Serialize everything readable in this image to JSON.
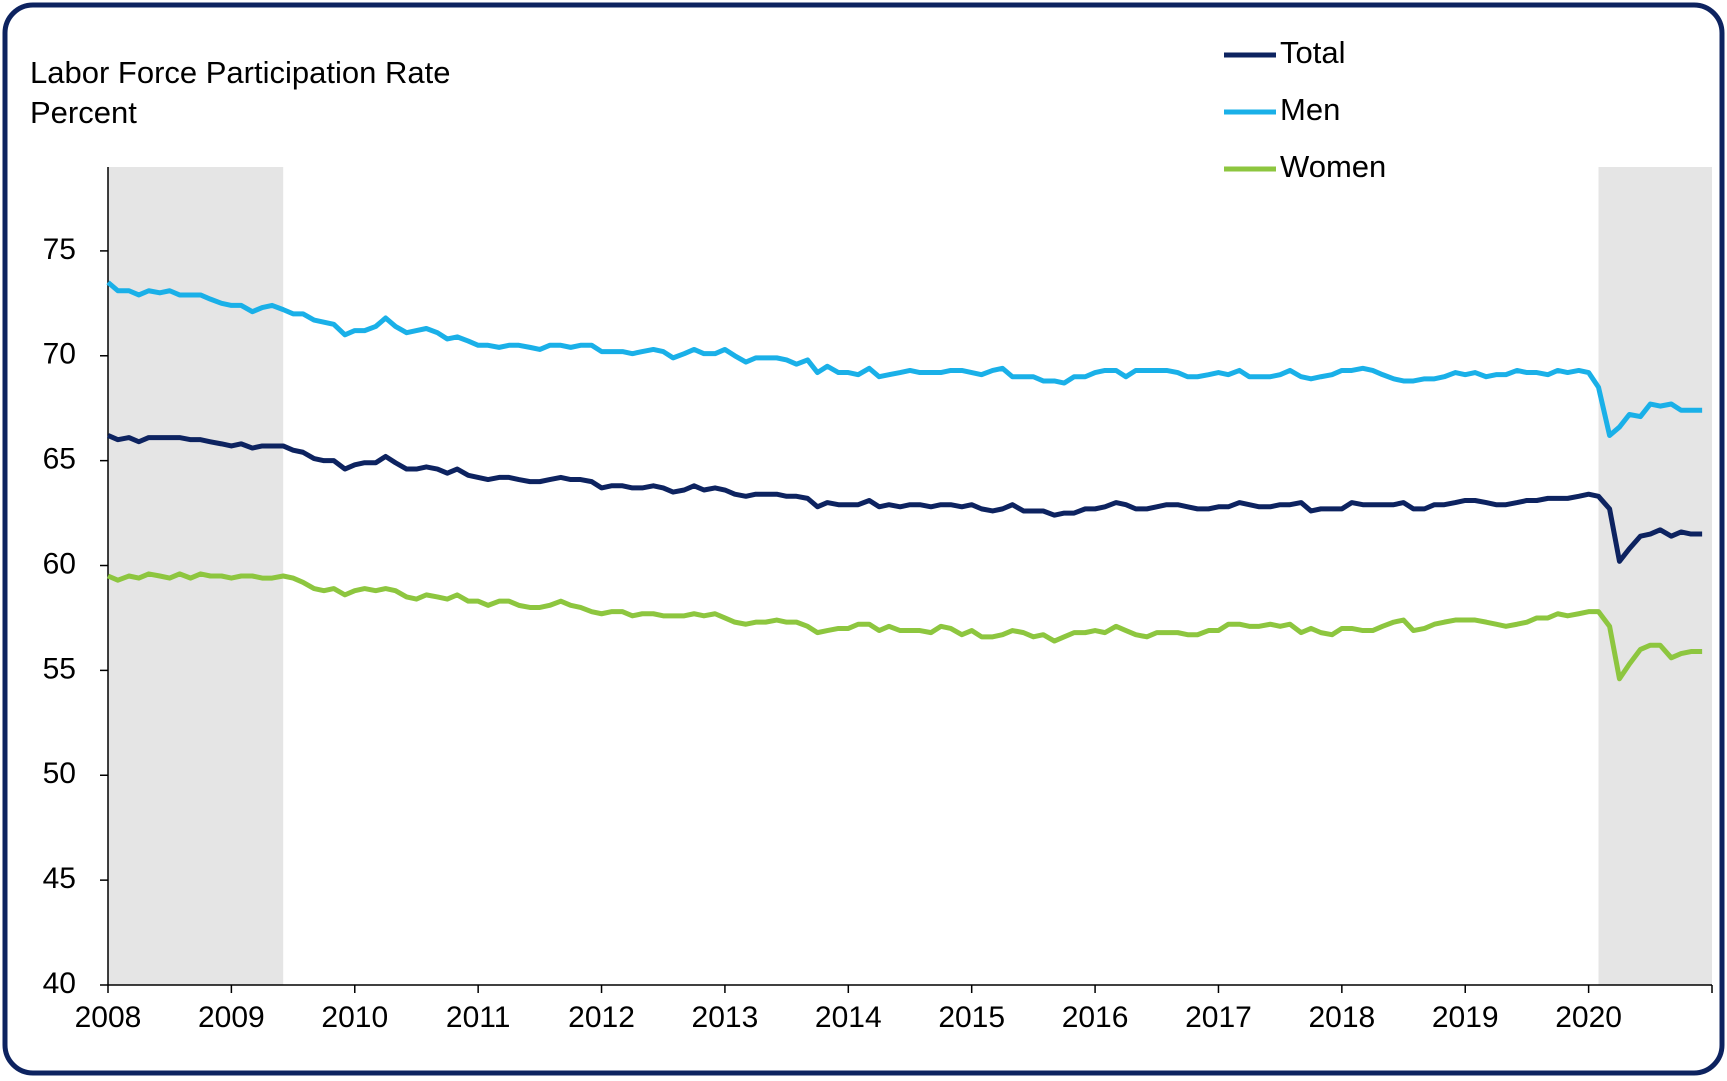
{
  "chart_data": {
    "type": "line",
    "title": "Labor Force Participation Rate",
    "ylabel": "Percent",
    "legend": "top-right",
    "grid": false,
    "shaded_ranges": [
      [
        2008,
        2009.42
      ],
      [
        2020.08,
        2021
      ]
    ],
    "shade_color": "#e5e5e5",
    "xlim": [
      2008,
      2021
    ],
    "xticks": [
      2008,
      2009,
      2010,
      2011,
      2012,
      2013,
      2014,
      2015,
      2016,
      2017,
      2018,
      2019,
      2020
    ],
    "ylim": [
      40,
      79
    ],
    "yticks": [
      40,
      45,
      50,
      55,
      60,
      65,
      70,
      75
    ],
    "x": [
      2008,
      2008.08,
      2008.17,
      2008.25,
      2008.33,
      2008.42,
      2008.5,
      2008.58,
      2008.67,
      2008.75,
      2008.83,
      2008.92,
      2009,
      2009.08,
      2009.17,
      2009.25,
      2009.33,
      2009.42,
      2009.5,
      2009.58,
      2009.67,
      2009.75,
      2009.83,
      2009.92,
      2010,
      2010.08,
      2010.17,
      2010.25,
      2010.33,
      2010.42,
      2010.5,
      2010.58,
      2010.67,
      2010.75,
      2010.83,
      2010.92,
      2011,
      2011.08,
      2011.17,
      2011.25,
      2011.33,
      2011.42,
      2011.5,
      2011.58,
      2011.67,
      2011.75,
      2011.83,
      2011.92,
      2012,
      2012.08,
      2012.17,
      2012.25,
      2012.33,
      2012.42,
      2012.5,
      2012.58,
      2012.67,
      2012.75,
      2012.83,
      2012.92,
      2013,
      2013.08,
      2013.17,
      2013.25,
      2013.33,
      2013.42,
      2013.5,
      2013.58,
      2013.67,
      2013.75,
      2013.83,
      2013.92,
      2014,
      2014.08,
      2014.17,
      2014.25,
      2014.33,
      2014.42,
      2014.5,
      2014.58,
      2014.67,
      2014.75,
      2014.83,
      2014.92,
      2015,
      2015.08,
      2015.17,
      2015.25,
      2015.33,
      2015.42,
      2015.5,
      2015.58,
      2015.67,
      2015.75,
      2015.83,
      2015.92,
      2016,
      2016.08,
      2016.17,
      2016.25,
      2016.33,
      2016.42,
      2016.5,
      2016.58,
      2016.67,
      2016.75,
      2016.83,
      2016.92,
      2017,
      2017.08,
      2017.17,
      2017.25,
      2017.33,
      2017.42,
      2017.5,
      2017.58,
      2017.67,
      2017.75,
      2017.83,
      2017.92,
      2018,
      2018.08,
      2018.17,
      2018.25,
      2018.33,
      2018.42,
      2018.5,
      2018.58,
      2018.67,
      2018.75,
      2018.83,
      2018.92,
      2019,
      2019.08,
      2019.17,
      2019.25,
      2019.33,
      2019.42,
      2019.5,
      2019.58,
      2019.67,
      2019.75,
      2019.83,
      2019.92,
      2020,
      2020.08,
      2020.17,
      2020.25,
      2020.33,
      2020.42,
      2020.5,
      2020.58,
      2020.67,
      2020.75,
      2020.83,
      2020.92
    ],
    "series": [
      {
        "name": "Total",
        "color": "#0d2360",
        "values": [
          66.2,
          66.0,
          66.1,
          65.9,
          66.1,
          66.1,
          66.1,
          66.1,
          66.0,
          66.0,
          65.9,
          65.8,
          65.7,
          65.8,
          65.6,
          65.7,
          65.7,
          65.7,
          65.5,
          65.4,
          65.1,
          65.0,
          65.0,
          64.6,
          64.8,
          64.9,
          64.9,
          65.2,
          64.9,
          64.6,
          64.6,
          64.7,
          64.6,
          64.4,
          64.6,
          64.3,
          64.2,
          64.1,
          64.2,
          64.2,
          64.1,
          64.0,
          64.0,
          64.1,
          64.2,
          64.1,
          64.1,
          64.0,
          63.7,
          63.8,
          63.8,
          63.7,
          63.7,
          63.8,
          63.7,
          63.5,
          63.6,
          63.8,
          63.6,
          63.7,
          63.6,
          63.4,
          63.3,
          63.4,
          63.4,
          63.4,
          63.3,
          63.3,
          63.2,
          62.8,
          63.0,
          62.9,
          62.9,
          62.9,
          63.1,
          62.8,
          62.9,
          62.8,
          62.9,
          62.9,
          62.8,
          62.9,
          62.9,
          62.8,
          62.9,
          62.7,
          62.6,
          62.7,
          62.9,
          62.6,
          62.6,
          62.6,
          62.4,
          62.5,
          62.5,
          62.7,
          62.7,
          62.8,
          63.0,
          62.9,
          62.7,
          62.7,
          62.8,
          62.9,
          62.9,
          62.8,
          62.7,
          62.7,
          62.8,
          62.8,
          63.0,
          62.9,
          62.8,
          62.8,
          62.9,
          62.9,
          63.0,
          62.6,
          62.7,
          62.7,
          62.7,
          63.0,
          62.9,
          62.9,
          62.9,
          62.9,
          63.0,
          62.7,
          62.7,
          62.9,
          62.9,
          63.0,
          63.1,
          63.1,
          63.0,
          62.9,
          62.9,
          63.0,
          63.1,
          63.1,
          63.2,
          63.2,
          63.2,
          63.3,
          63.4,
          63.3,
          62.7,
          60.2,
          60.8,
          61.4,
          61.5,
          61.7,
          61.4,
          61.6,
          61.5,
          61.5
        ]
      },
      {
        "name": "Men",
        "color": "#1ab0e8",
        "values": [
          73.5,
          73.1,
          73.1,
          72.9,
          73.1,
          73.0,
          73.1,
          72.9,
          72.9,
          72.9,
          72.7,
          72.5,
          72.4,
          72.4,
          72.1,
          72.3,
          72.4,
          72.2,
          72.0,
          72.0,
          71.7,
          71.6,
          71.5,
          71.0,
          71.2,
          71.2,
          71.4,
          71.8,
          71.4,
          71.1,
          71.2,
          71.3,
          71.1,
          70.8,
          70.9,
          70.7,
          70.5,
          70.5,
          70.4,
          70.5,
          70.5,
          70.4,
          70.3,
          70.5,
          70.5,
          70.4,
          70.5,
          70.5,
          70.2,
          70.2,
          70.2,
          70.1,
          70.2,
          70.3,
          70.2,
          69.9,
          70.1,
          70.3,
          70.1,
          70.1,
          70.3,
          70.0,
          69.7,
          69.9,
          69.9,
          69.9,
          69.8,
          69.6,
          69.8,
          69.2,
          69.5,
          69.2,
          69.2,
          69.1,
          69.4,
          69.0,
          69.1,
          69.2,
          69.3,
          69.2,
          69.2,
          69.2,
          69.3,
          69.3,
          69.2,
          69.1,
          69.3,
          69.4,
          69.0,
          69.0,
          69.0,
          68.8,
          68.8,
          68.7,
          69.0,
          69.0,
          69.2,
          69.3,
          69.3,
          69.0,
          69.3,
          69.3,
          69.3,
          69.3,
          69.2,
          69.0,
          69.0,
          69.1,
          69.2,
          69.1,
          69.3,
          69.0,
          69.0,
          69.0,
          69.1,
          69.3,
          69.0,
          68.9,
          69.0,
          69.1,
          69.3,
          69.3,
          69.4,
          69.3,
          69.1,
          68.9,
          68.8,
          68.8,
          68.9,
          68.9,
          69.0,
          69.2,
          69.1,
          69.2,
          69.0,
          69.1,
          69.1,
          69.3,
          69.2,
          69.2,
          69.1,
          69.3,
          69.2,
          69.3,
          69.2,
          68.5,
          66.2,
          66.6,
          67.2,
          67.1,
          67.7,
          67.6,
          67.7,
          67.4,
          67.4,
          67.4
        ]
      },
      {
        "name": "Women",
        "color": "#8dc63f",
        "values": [
          59.5,
          59.3,
          59.5,
          59.4,
          59.6,
          59.5,
          59.4,
          59.6,
          59.4,
          59.6,
          59.5,
          59.5,
          59.4,
          59.5,
          59.5,
          59.4,
          59.4,
          59.5,
          59.4,
          59.2,
          58.9,
          58.8,
          58.9,
          58.6,
          58.8,
          58.9,
          58.8,
          58.9,
          58.8,
          58.5,
          58.4,
          58.6,
          58.5,
          58.4,
          58.6,
          58.3,
          58.3,
          58.1,
          58.3,
          58.3,
          58.1,
          58.0,
          58.0,
          58.1,
          58.3,
          58.1,
          58.0,
          57.8,
          57.7,
          57.8,
          57.8,
          57.6,
          57.7,
          57.7,
          57.6,
          57.6,
          57.6,
          57.7,
          57.6,
          57.7,
          57.5,
          57.3,
          57.2,
          57.3,
          57.3,
          57.4,
          57.3,
          57.3,
          57.1,
          56.8,
          56.9,
          57.0,
          57.0,
          57.2,
          57.2,
          56.9,
          57.1,
          56.9,
          56.9,
          56.9,
          56.8,
          57.1,
          57.0,
          56.7,
          56.9,
          56.6,
          56.6,
          56.7,
          56.9,
          56.8,
          56.6,
          56.7,
          56.4,
          56.6,
          56.8,
          56.8,
          56.9,
          56.8,
          57.1,
          56.9,
          56.7,
          56.6,
          56.8,
          56.8,
          56.8,
          56.7,
          56.7,
          56.9,
          56.9,
          57.2,
          57.2,
          57.1,
          57.1,
          57.2,
          57.1,
          57.2,
          56.8,
          57.0,
          56.8,
          56.7,
          57.0,
          57.0,
          56.9,
          56.9,
          57.1,
          57.3,
          57.4,
          56.9,
          57.0,
          57.2,
          57.3,
          57.4,
          57.4,
          57.4,
          57.3,
          57.2,
          57.1,
          57.2,
          57.3,
          57.5,
          57.5,
          57.7,
          57.6,
          57.7,
          57.8,
          57.8,
          57.1,
          54.6,
          55.3,
          56.0,
          56.2,
          56.2,
          55.6,
          55.8,
          55.9,
          55.9
        ]
      }
    ]
  }
}
